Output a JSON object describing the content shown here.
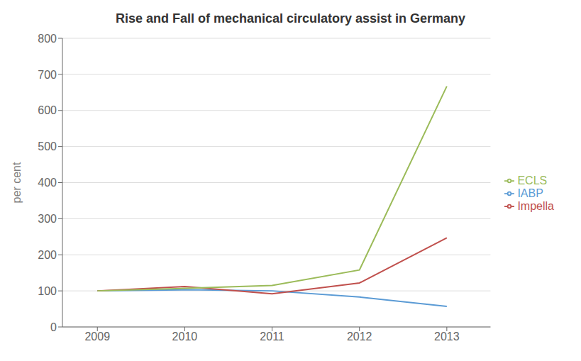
{
  "chart_data": {
    "type": "line",
    "title": "Rise and Fall of mechanical circulatory assist in Germany",
    "ylabel": "per cent",
    "x": [
      2009,
      2010,
      2011,
      2012,
      2013
    ],
    "series": [
      {
        "name": "IABP",
        "color": "#5B9BD5",
        "values": [
          100,
          103,
          100,
          83,
          57
        ]
      },
      {
        "name": "Impella",
        "color": "#C0504D",
        "values": [
          100,
          112,
          92,
          122,
          247
        ]
      },
      {
        "name": "ECLS",
        "color": "#9BBB59",
        "values": [
          100,
          107,
          115,
          158,
          667
        ]
      }
    ],
    "xlim": [
      2008.6,
      2013.5
    ],
    "xticks": [
      2009,
      2010,
      2011,
      2012,
      2013
    ],
    "ylim": [
      0,
      800
    ],
    "yticks": [
      0,
      100,
      200,
      300,
      400,
      500,
      600,
      700,
      800
    ],
    "grid": true,
    "legend": "right"
  }
}
